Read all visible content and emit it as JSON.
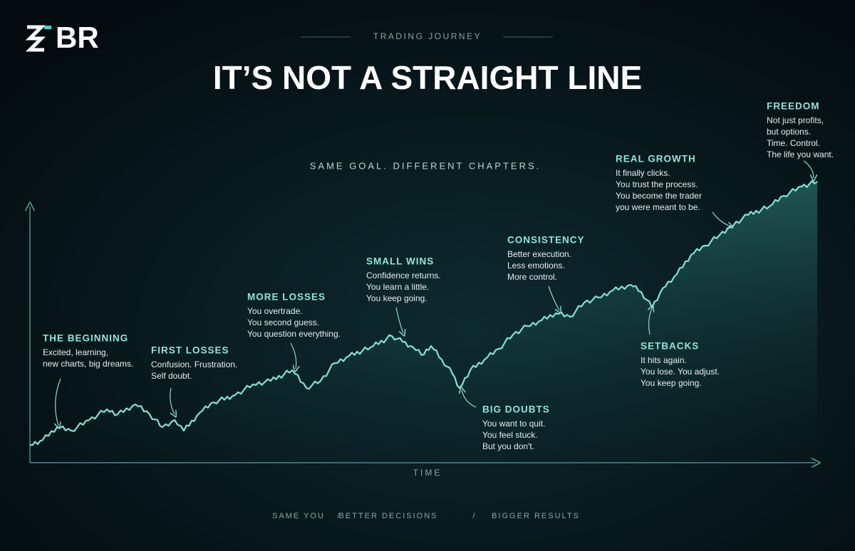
{
  "logo": "BR",
  "header": {
    "kicker": "TRADING JOURNEY",
    "title": "IT’S NOT A STRAIGHT LINE",
    "subtitle": "SAME GOAL. DIFFERENT CHAPTERS."
  },
  "axis": {
    "x_label": "TIME"
  },
  "milestones": [
    {
      "title": "THE BEGINNING",
      "lines": [
        "Excited, learning,",
        "new charts, big dreams."
      ]
    },
    {
      "title": "FIRST LOSSES",
      "lines": [
        "Confusion. Frustration.",
        "Self doubt."
      ]
    },
    {
      "title": "MORE LOSSES",
      "lines": [
        "You overtrade.",
        "You second guess.",
        "You question everything."
      ]
    },
    {
      "title": "SMALL WINS",
      "lines": [
        "Confidence returns.",
        "You learn a little.",
        "You keep going."
      ]
    },
    {
      "title": "BIG DOUBTS",
      "lines": [
        "You want to quit.",
        "You feel stuck.",
        "But you don't."
      ]
    },
    {
      "title": "CONSISTENCY",
      "lines": [
        "Better execution.",
        "Less emotions.",
        "More control."
      ]
    },
    {
      "title": "SETBACKS",
      "lines": [
        "It hits again.",
        "You lose. You adjust.",
        "You keep going."
      ]
    },
    {
      "title": "REAL GROWTH",
      "lines": [
        "It finally clicks.",
        "You trust the process.",
        "You become the trader",
        "you were meant to be."
      ]
    },
    {
      "title": "FREEDOM",
      "lines": [
        "Not just profits,",
        "but options.",
        "Time. Control.",
        "The life you want."
      ]
    }
  ],
  "footer": {
    "items": [
      "SAME YOU",
      "BETTER DECISIONS",
      "BIGGER RESULTS"
    ],
    "separator": "/"
  }
}
